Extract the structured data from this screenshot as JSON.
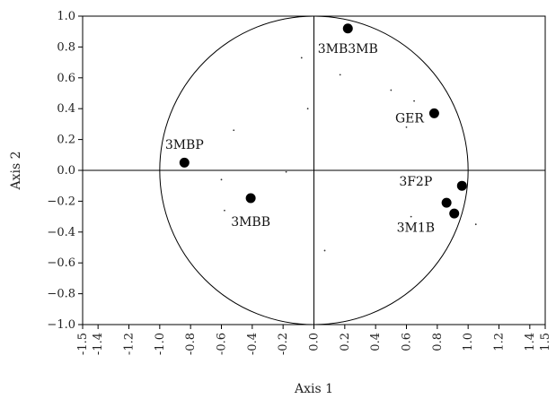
{
  "chart_data": {
    "type": "scatter",
    "xlabel": "Axis 1",
    "ylabel": "Axis 2",
    "xlim": [
      -1.5,
      1.5
    ],
    "ylim": [
      -1.0,
      1.0
    ],
    "x_ticks": [
      "-1.5",
      "-1.4",
      "-1.2",
      "-1.0",
      "-0.8",
      "-0.6",
      "-0.4",
      "-0.2",
      "0.0",
      "0.2",
      "0.4",
      "0.6",
      "0.8",
      "1.0",
      "1.2",
      "1.4",
      "1.5"
    ],
    "x_tick_values": [
      -1.5,
      -1.4,
      -1.2,
      -1.0,
      -0.8,
      -0.6,
      -0.4,
      -0.2,
      0.0,
      0.2,
      0.4,
      0.6,
      0.8,
      1.0,
      1.2,
      1.4,
      1.5
    ],
    "y_ticks": [
      "1.0",
      "0.8",
      "0.6",
      "0.4",
      "0.2",
      "0.0",
      "−0.2",
      "−0.4",
      "−0.6",
      "−0.8",
      "−1.0"
    ],
    "y_tick_values": [
      1.0,
      0.8,
      0.6,
      0.4,
      0.2,
      0.0,
      -0.2,
      -0.4,
      -0.6,
      -0.8,
      -1.0
    ],
    "unit_circle": true,
    "crosshair_at_origin": true,
    "points": [
      {
        "x": 0.22,
        "y": 0.92
      },
      {
        "x": 0.78,
        "y": 0.37
      },
      {
        "x": -0.84,
        "y": 0.05
      },
      {
        "x": -0.41,
        "y": -0.18
      },
      {
        "x": 0.96,
        "y": -0.1
      },
      {
        "x": 0.86,
        "y": -0.21
      },
      {
        "x": 0.91,
        "y": -0.28
      }
    ],
    "labels": [
      {
        "text": "3MB3MB",
        "x": 0.22,
        "y": 0.79
      },
      {
        "text": "GER",
        "x": 0.62,
        "y": 0.34
      },
      {
        "text": "3MBP",
        "x": -0.84,
        "y": 0.17
      },
      {
        "text": "3MBB",
        "x": -0.41,
        "y": -0.33
      },
      {
        "text": "3F2P",
        "x": 0.66,
        "y": -0.07
      },
      {
        "text": "3M1B",
        "x": 0.66,
        "y": -0.37
      }
    ],
    "minor_dots": [
      {
        "x": -0.08,
        "y": 0.73
      },
      {
        "x": 0.17,
        "y": 0.62
      },
      {
        "x": 0.5,
        "y": 0.52
      },
      {
        "x": 0.65,
        "y": 0.45
      },
      {
        "x": -0.04,
        "y": 0.4
      },
      {
        "x": -0.52,
        "y": 0.26
      },
      {
        "x": 0.6,
        "y": 0.28
      },
      {
        "x": -0.18,
        "y": -0.01
      },
      {
        "x": -0.6,
        "y": -0.06
      },
      {
        "x": -0.58,
        "y": -0.26
      },
      {
        "x": 0.63,
        "y": -0.3
      },
      {
        "x": 1.05,
        "y": -0.35
      },
      {
        "x": 0.07,
        "y": -0.52
      }
    ],
    "grid": false,
    "legend": "none"
  }
}
